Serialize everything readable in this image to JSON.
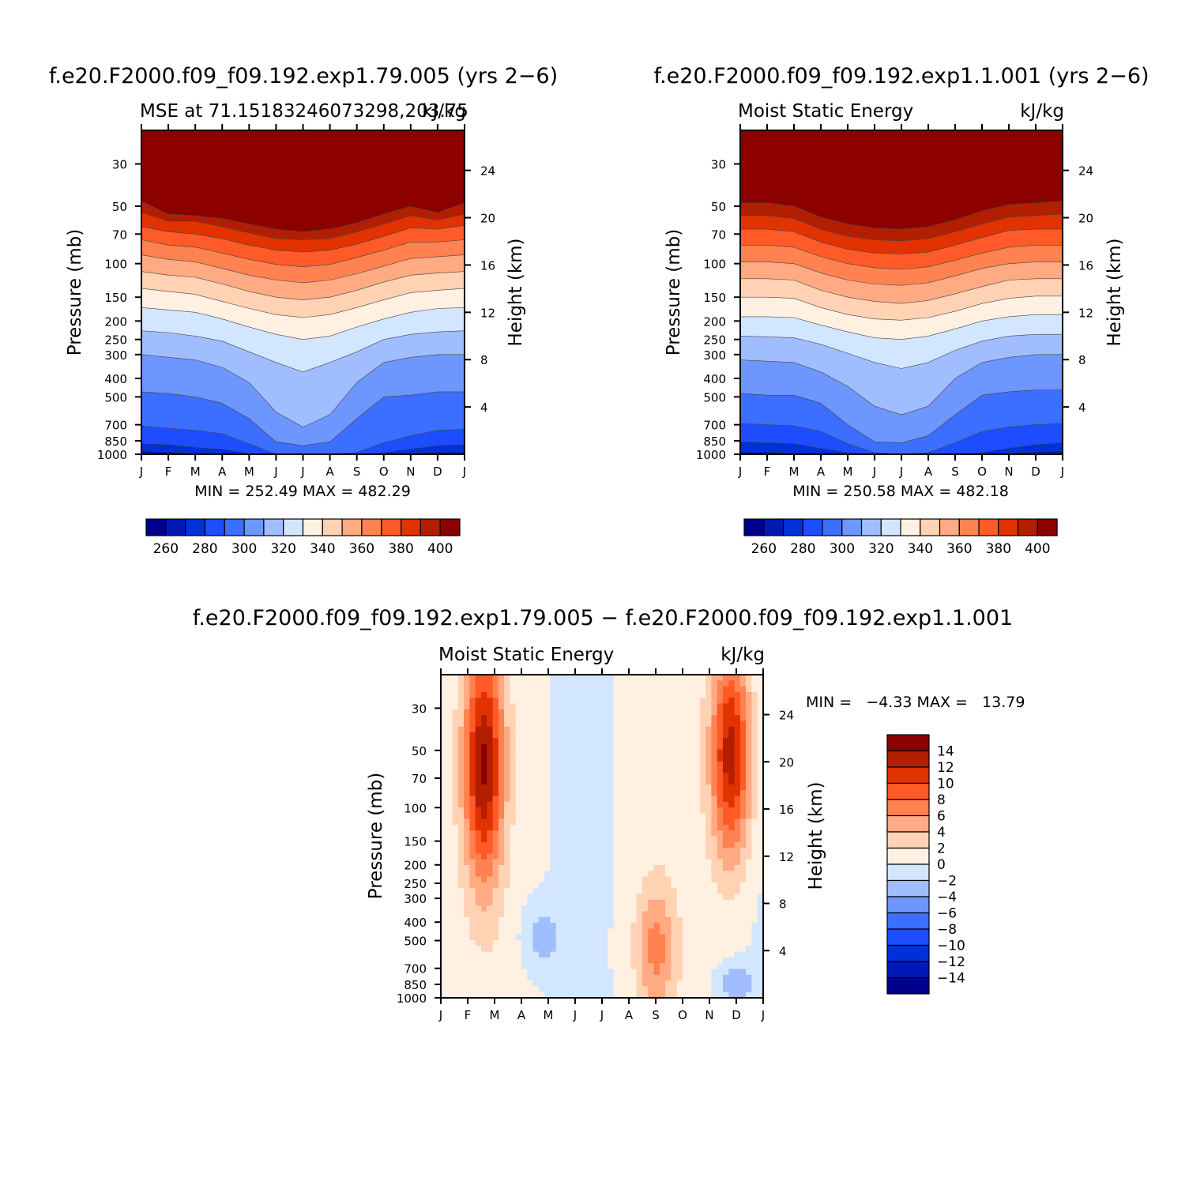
{
  "chart_data": [
    {
      "type": "heatmap",
      "title": "f.e20.F2000.f09_f09.192.exp1.79.005 (yrs 2−6)",
      "subtitle_left": "MSE at 71.15183246073298,203.75",
      "subtitle_right": "kJ/kg",
      "ylabel": "Pressure (mb)",
      "ylabel_right": "Height (km)",
      "months": [
        "J",
        "F",
        "M",
        "A",
        "M",
        "J",
        "J",
        "A",
        "S",
        "O",
        "N",
        "D",
        "J"
      ],
      "pressure_ticks": [
        30,
        50,
        70,
        100,
        150,
        200,
        250,
        300,
        400,
        500,
        700,
        850,
        1000
      ],
      "height_ticks": [
        24,
        20,
        16,
        12,
        8,
        4
      ],
      "ylim": [
        1000,
        20
      ],
      "log_scale": true,
      "stats": "MIN = 252.49 MAX = 482.29",
      "min": 252.49,
      "max": 482.29,
      "levels": [
        260,
        270,
        280,
        290,
        300,
        310,
        320,
        330,
        340,
        350,
        360,
        370,
        380,
        390,
        400
      ],
      "colorbar_labels": [
        "260",
        "280",
        "300",
        "320",
        "340",
        "360",
        "380",
        "400"
      ],
      "contour_pressures": {
        "260": [
          1000,
          1000,
          1000,
          1000,
          1000,
          1000,
          1000,
          1000,
          1000,
          1000,
          1000,
          990,
          990
        ],
        "270": [
          960,
          970,
          990,
          995,
          1000,
          1000,
          1000,
          1000,
          1000,
          1000,
          990,
          970,
          965
        ],
        "280": [
          880,
          890,
          920,
          940,
          990,
          1000,
          1000,
          1000,
          1000,
          980,
          940,
          900,
          890
        ],
        "290": [
          710,
          730,
          750,
          780,
          880,
          1000,
          1000,
          1000,
          980,
          870,
          800,
          750,
          740
        ],
        "300": [
          470,
          480,
          500,
          540,
          650,
          860,
          900,
          860,
          650,
          500,
          490,
          470,
          470
        ],
        "310": [
          300,
          310,
          320,
          350,
          420,
          600,
          720,
          620,
          420,
          330,
          310,
          300,
          300
        ],
        "320": [
          225,
          230,
          240,
          255,
          290,
          330,
          370,
          330,
          290,
          250,
          235,
          228,
          225
        ],
        "330": [
          170,
          175,
          180,
          195,
          215,
          235,
          250,
          240,
          215,
          195,
          180,
          172,
          170
        ],
        "340": [
          135,
          140,
          145,
          158,
          172,
          185,
          192,
          185,
          170,
          155,
          142,
          138,
          135
        ],
        "350": [
          110,
          115,
          118,
          128,
          140,
          150,
          155,
          150,
          138,
          125,
          115,
          112,
          110
        ],
        "360": [
          90,
          95,
          98,
          106,
          115,
          122,
          126,
          122,
          113,
          103,
          94,
          92,
          90
        ],
        "370": [
          75,
          80,
          82,
          88,
          95,
          101,
          104,
          101,
          93,
          85,
          77,
          77,
          75
        ],
        "380": [
          64,
          68,
          70,
          74,
          80,
          85,
          87,
          85,
          79,
          72,
          65,
          66,
          63
        ],
        "390": [
          54,
          60,
          60,
          64,
          69,
          74,
          75,
          74,
          68,
          62,
          56,
          59,
          55
        ],
        "400": [
          47,
          55,
          56,
          58,
          62,
          66,
          68,
          66,
          61,
          55,
          50,
          54,
          48
        ]
      }
    },
    {
      "type": "heatmap",
      "title": "f.e20.F2000.f09_f09.192.exp1.1.001 (yrs 2−6)",
      "subtitle_left": "Moist Static Energy",
      "subtitle_right": "kJ/kg",
      "ylabel": "Pressure (mb)",
      "ylabel_right": "Height (km)",
      "months": [
        "J",
        "F",
        "M",
        "A",
        "M",
        "J",
        "J",
        "A",
        "S",
        "O",
        "N",
        "D",
        "J"
      ],
      "pressure_ticks": [
        30,
        50,
        70,
        100,
        150,
        200,
        250,
        300,
        400,
        500,
        700,
        850,
        1000
      ],
      "height_ticks": [
        24,
        20,
        16,
        12,
        8,
        4
      ],
      "ylim": [
        1000,
        20
      ],
      "log_scale": true,
      "stats": "MIN = 250.58 MAX = 482.18",
      "min": 250.58,
      "max": 482.18,
      "levels": [
        260,
        270,
        280,
        290,
        300,
        310,
        320,
        330,
        340,
        350,
        360,
        370,
        380,
        390,
        400
      ],
      "colorbar_labels": [
        "260",
        "280",
        "300",
        "320",
        "340",
        "360",
        "380",
        "400"
      ],
      "contour_pressures": {
        "260": [
          1000,
          1000,
          1000,
          1000,
          1000,
          1000,
          1000,
          1000,
          1000,
          1000,
          1000,
          985,
          985
        ],
        "270": [
          965,
          970,
          990,
          1000,
          1000,
          1000,
          1000,
          1000,
          1000,
          1000,
          990,
          965,
          960
        ],
        "280": [
          860,
          870,
          880,
          930,
          980,
          1000,
          1000,
          1000,
          1000,
          980,
          930,
          890,
          870
        ],
        "290": [
          690,
          700,
          710,
          760,
          880,
          980,
          1000,
          980,
          870,
          760,
          720,
          700,
          690
        ],
        "300": [
          480,
          490,
          490,
          540,
          700,
          860,
          870,
          800,
          620,
          490,
          470,
          460,
          460
        ],
        "310": [
          320,
          325,
          330,
          370,
          440,
          560,
          620,
          560,
          400,
          330,
          310,
          300,
          300
        ],
        "320": [
          240,
          242,
          245,
          265,
          295,
          330,
          355,
          330,
          285,
          255,
          240,
          235,
          235
        ],
        "330": [
          190,
          190,
          192,
          210,
          228,
          245,
          250,
          240,
          220,
          200,
          190,
          185,
          185
        ],
        "340": [
          150,
          150,
          152,
          170,
          185,
          195,
          198,
          192,
          178,
          162,
          152,
          148,
          148
        ],
        "350": [
          120,
          120,
          122,
          138,
          150,
          158,
          162,
          156,
          144,
          132,
          122,
          120,
          120
        ],
        "360": [
          98,
          98,
          100,
          112,
          122,
          128,
          130,
          126,
          116,
          106,
          100,
          98,
          98
        ],
        "370": [
          80,
          80,
          82,
          92,
          100,
          105,
          107,
          104,
          96,
          88,
          82,
          80,
          80
        ],
        "380": [
          66,
          66,
          68,
          77,
          84,
          88,
          89,
          87,
          80,
          73,
          67,
          66,
          66
        ],
        "390": [
          56,
          56,
          58,
          66,
          72,
          75,
          76,
          74,
          68,
          62,
          57,
          56,
          55
        ],
        "400": [
          48,
          48,
          50,
          57,
          62,
          65,
          66,
          64,
          59,
          53,
          49,
          48,
          47
        ]
      }
    },
    {
      "type": "heatmap",
      "title": "f.e20.F2000.f09_f09.192.exp1.79.005 − f.e20.F2000.f09_f09.192.exp1.1.001",
      "subtitle_left": "Moist Static Energy",
      "subtitle_right": "kJ/kg",
      "ylabel": "Pressure (mb)",
      "ylabel_right": "Height (km)",
      "months": [
        "J",
        "F",
        "M",
        "A",
        "M",
        "J",
        "J",
        "A",
        "S",
        "O",
        "N",
        "D",
        "J"
      ],
      "pressure_ticks": [
        30,
        50,
        70,
        100,
        150,
        200,
        250,
        300,
        400,
        500,
        700,
        850,
        1000
      ],
      "height_ticks": [
        24,
        20,
        16,
        12,
        8,
        4
      ],
      "ylim": [
        1000,
        20
      ],
      "log_scale": true,
      "stats": "MIN =   −4.33 MAX =   13.79",
      "min": -4.33,
      "max": 13.79,
      "levels": [
        -14,
        -12,
        -10,
        -8,
        -6,
        -4,
        -2,
        0,
        2,
        4,
        6,
        8,
        10,
        12,
        14
      ],
      "colorbar_labels": [
        "14",
        "12",
        "10",
        "8",
        "6",
        "4",
        "2",
        "0",
        "−2",
        "−4",
        "−6",
        "−8",
        "−10",
        "−12",
        "−14"
      ],
      "features": [
        {
          "month": 1.6,
          "pressure_range": [
            20,
            180
          ],
          "peak": 13.5,
          "note": "positive anomaly Feb-Mar upper levels"
        },
        {
          "month": 10.8,
          "pressure_range": [
            20,
            140
          ],
          "peak": 13.0,
          "note": "positive anomaly Nov-Dec upper levels"
        },
        {
          "month": 8.0,
          "pressure_range": [
            300,
            1000
          ],
          "peak": 6.0,
          "note": "weak positive anomaly Sep lower levels"
        },
        {
          "month": 3.8,
          "pressure_range": [
            350,
            650
          ],
          "peak": -3.0,
          "note": "weak negative anomaly Apr-May"
        },
        {
          "month": 11.0,
          "pressure_range": [
            700,
            1000
          ],
          "peak": -3.5,
          "note": "weak negative anomaly Dec near surface"
        }
      ]
    }
  ]
}
